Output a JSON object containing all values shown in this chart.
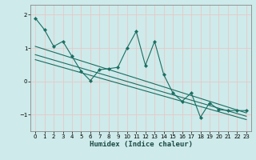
{
  "xlabel": "Humidex (Indice chaleur)",
  "bg_color": "#ceeaea",
  "grid_color": "#e8c8c8",
  "line_color": "#1a6e62",
  "marker": "D",
  "marker_size": 2.2,
  "xlim": [
    -0.5,
    23.5
  ],
  "ylim": [
    -1.5,
    2.3
  ],
  "yticks": [
    -1,
    0,
    1,
    2
  ],
  "xticks": [
    0,
    1,
    2,
    3,
    4,
    5,
    6,
    7,
    8,
    9,
    10,
    11,
    12,
    13,
    14,
    15,
    16,
    17,
    18,
    19,
    20,
    21,
    22,
    23
  ],
  "line1_x": [
    0,
    1,
    2,
    3,
    4,
    5,
    6,
    7,
    8,
    9,
    10,
    11,
    12,
    13,
    14,
    15,
    16,
    17,
    18,
    19,
    20,
    21,
    22,
    23
  ],
  "line1_y": [
    1.9,
    1.55,
    1.05,
    1.2,
    0.75,
    0.3,
    0.02,
    0.35,
    0.38,
    0.42,
    1.0,
    1.5,
    0.48,
    1.2,
    0.2,
    -0.35,
    -0.6,
    -0.35,
    -1.08,
    -0.65,
    -0.85,
    -0.88,
    -0.88,
    -0.88
  ],
  "line2_x": [
    0,
    23
  ],
  "line2_y": [
    1.05,
    -0.95
  ],
  "line3_x": [
    0,
    23
  ],
  "line3_y": [
    0.8,
    -1.05
  ],
  "line4_x": [
    0,
    23
  ],
  "line4_y": [
    0.65,
    -1.15
  ]
}
